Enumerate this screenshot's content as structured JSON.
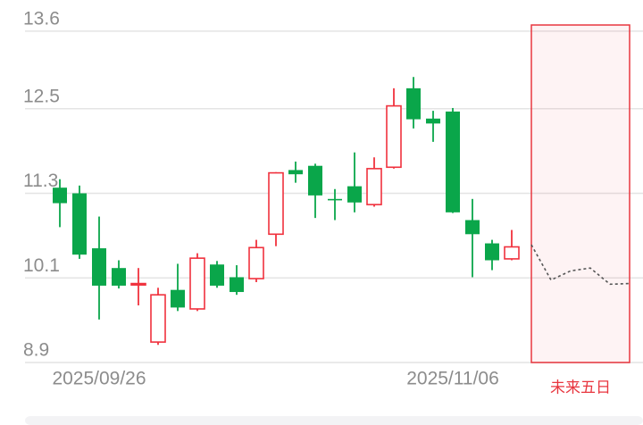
{
  "chart_data": {
    "type": "candlestick",
    "categories": [
      null,
      null,
      "2025/09/26",
      null,
      null,
      null,
      null,
      null,
      null,
      null,
      null,
      null,
      null,
      null,
      null,
      null,
      null,
      null,
      null,
      null,
      "2025/11/06",
      null,
      null,
      null,
      null,
      null,
      null,
      null,
      null,
      null
    ],
    "open": [
      11.38,
      11.3,
      10.52,
      10.24,
      10.0,
      9.19,
      9.93,
      9.66,
      10.29,
      10.11,
      10.09,
      10.72,
      11.63,
      11.69,
      11.22,
      11.4,
      11.14,
      11.67,
      12.79,
      12.36,
      12.46,
      10.92,
      10.59,
      10.37,
      null,
      null,
      null,
      null,
      null,
      null
    ],
    "close": [
      11.16,
      10.43,
      9.99,
      9.99,
      10.02,
      9.86,
      9.68,
      10.38,
      9.99,
      9.9,
      10.53,
      11.59,
      11.57,
      11.27,
      11.2,
      11.17,
      11.65,
      12.54,
      12.35,
      12.29,
      11.03,
      10.72,
      10.35,
      10.54,
      null,
      null,
      null,
      null,
      null,
      null
    ],
    "high": [
      11.5,
      11.41,
      10.97,
      10.35,
      10.24,
      9.96,
      10.3,
      10.45,
      10.34,
      10.28,
      10.64,
      11.6,
      11.75,
      11.72,
      11.36,
      11.88,
      11.81,
      12.79,
      12.95,
      12.47,
      12.51,
      11.22,
      10.64,
      10.78,
      null,
      null,
      null,
      null,
      null,
      null
    ],
    "low": [
      10.82,
      10.37,
      9.51,
      9.95,
      9.71,
      9.15,
      9.63,
      9.63,
      9.96,
      9.86,
      10.04,
      10.55,
      11.45,
      10.95,
      10.92,
      11.03,
      11.11,
      11.65,
      12.22,
      12.03,
      11.02,
      10.11,
      10.21,
      10.35,
      null,
      null,
      null,
      null,
      null,
      null
    ],
    "up_color": "#f0313d",
    "down_color": "#0aa64a",
    "forecast": {
      "color": "#555555",
      "values": [
        null,
        null,
        null,
        null,
        null,
        null,
        null,
        null,
        null,
        null,
        null,
        null,
        null,
        null,
        null,
        null,
        null,
        null,
        null,
        null,
        null,
        null,
        null,
        null,
        10.57,
        10.07,
        10.2,
        10.24,
        10.01,
        10.02
      ]
    },
    "forecast_label": "未来五日",
    "ylim": [
      8.9,
      13.7
    ],
    "yticks": [
      8.9,
      10.1,
      11.3,
      12.5,
      13.6
    ],
    "grid": true
  }
}
